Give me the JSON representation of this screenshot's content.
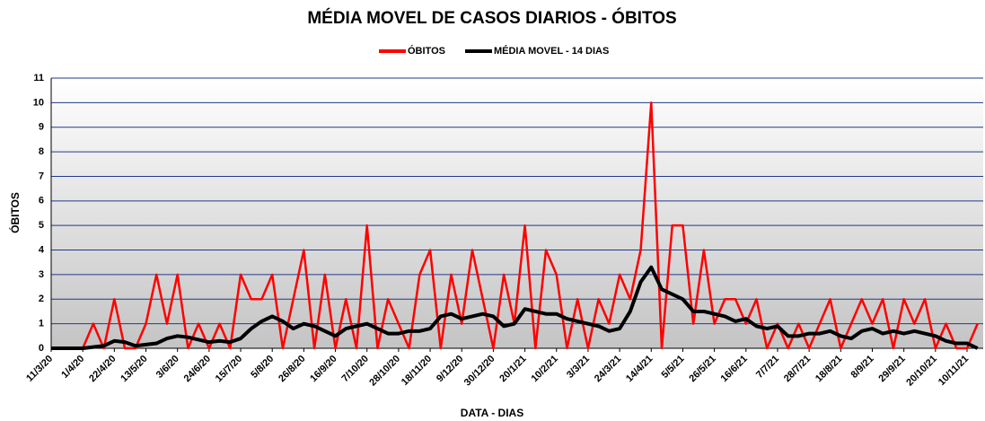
{
  "chart_data": {
    "type": "line",
    "title": "MÉDIA MOVEL DE CASOS DIARIOS - ÓBITOS",
    "x_label": "DATA - DIAS",
    "y_label": "ÓBITOS",
    "categories": [
      "11/3/20",
      null,
      null,
      "1/4/20",
      null,
      null,
      "22/4/20",
      null,
      null,
      "13/5/20",
      null,
      null,
      "3/6/20",
      null,
      null,
      "24/6/20",
      null,
      null,
      "15/7/20",
      null,
      null,
      "5/8/20",
      null,
      null,
      "26/8/20",
      null,
      null,
      "16/9/20",
      null,
      null,
      "7/10/20",
      null,
      null,
      "28/10/20",
      null,
      null,
      "18/11/20",
      null,
      null,
      "9/12/20",
      null,
      null,
      "30/12/20",
      null,
      null,
      "20/1/21",
      null,
      null,
      "10/2/21",
      null,
      null,
      "3/3/21",
      null,
      null,
      "24/3/21",
      null,
      null,
      "14/4/21",
      null,
      null,
      "5/5/21",
      null,
      null,
      "26/5/21",
      null,
      null,
      "16/6/21",
      null,
      null,
      "7/7/21",
      null,
      null,
      "28/7/21",
      null,
      null,
      "18/8/21",
      null,
      null,
      "8/9/21",
      null,
      null,
      "29/9/21",
      null,
      null,
      "20/10/21",
      null,
      null,
      "10/11/21",
      null
    ],
    "series": [
      {
        "name": "ÓBITOS",
        "color": "#ff0000",
        "values": [
          0,
          0,
          0,
          0,
          1,
          0,
          2,
          0,
          0,
          1,
          3,
          1,
          3,
          0,
          1,
          0,
          1,
          0,
          3,
          2,
          2,
          3,
          0,
          2,
          4,
          0,
          3,
          0,
          2,
          0,
          5,
          0,
          2,
          1,
          0,
          3,
          4,
          0,
          3,
          1,
          4,
          2,
          0,
          3,
          1,
          5,
          0,
          4,
          3,
          0,
          2,
          0,
          2,
          1,
          3,
          2,
          4,
          10,
          0,
          5,
          5,
          1,
          4,
          1,
          2,
          2,
          1,
          2,
          0,
          1,
          0,
          1,
          0,
          1,
          2,
          0,
          1,
          2,
          1,
          2,
          0,
          2,
          1,
          2,
          0,
          1,
          0,
          0,
          1
        ]
      },
      {
        "name": "MÉDIA MOVEL - 14 DIAS",
        "color": "#000000",
        "values": [
          0,
          0,
          0,
          0,
          0.05,
          0.1,
          0.3,
          0.25,
          0.1,
          0.15,
          0.2,
          0.4,
          0.5,
          0.45,
          0.35,
          0.25,
          0.3,
          0.25,
          0.4,
          0.8,
          1.1,
          1.3,
          1.1,
          0.8,
          1.0,
          0.9,
          0.7,
          0.5,
          0.8,
          0.9,
          1.0,
          0.8,
          0.6,
          0.6,
          0.7,
          0.7,
          0.8,
          1.3,
          1.4,
          1.2,
          1.3,
          1.4,
          1.3,
          0.9,
          1.0,
          1.6,
          1.5,
          1.4,
          1.4,
          1.2,
          1.1,
          1.0,
          0.9,
          0.7,
          0.8,
          1.5,
          2.7,
          3.3,
          2.4,
          2.2,
          2.0,
          1.5,
          1.5,
          1.4,
          1.3,
          1.1,
          1.2,
          0.9,
          0.8,
          0.9,
          0.5,
          0.5,
          0.6,
          0.6,
          0.7,
          0.5,
          0.4,
          0.7,
          0.8,
          0.6,
          0.7,
          0.6,
          0.7,
          0.6,
          0.5,
          0.3,
          0.2,
          0.2,
          0
        ]
      }
    ],
    "ylim": [
      0,
      11
    ],
    "yticks": [
      0,
      1,
      2,
      3,
      4,
      5,
      6,
      7,
      8,
      9,
      10,
      11
    ],
    "grid": true,
    "legend": "top"
  }
}
